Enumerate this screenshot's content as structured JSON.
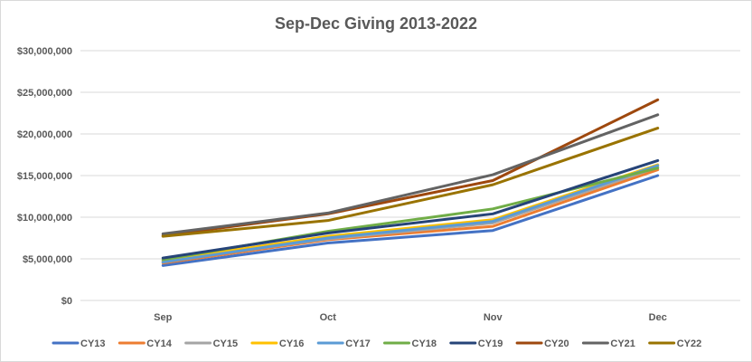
{
  "chart_data": {
    "type": "line",
    "title": "Sep-Dec Giving 2013-2022",
    "xlabel": "",
    "ylabel": "",
    "categories": [
      "Sep",
      "Oct",
      "Nov",
      "Dec"
    ],
    "ylim": [
      0,
      30000000
    ],
    "yticks": [
      0,
      5000000,
      10000000,
      15000000,
      20000000,
      25000000,
      30000000
    ],
    "ytick_labels": [
      "$0",
      "$5,000,000",
      "$10,000,000",
      "$15,000,000",
      "$20,000,000",
      "$25,000,000",
      "$30,000,000"
    ],
    "grid": true,
    "legend_position": "bottom",
    "series": [
      {
        "name": "CY13",
        "color": "#4472C4",
        "values": [
          4200000,
          6900000,
          8400000,
          15000000
        ]
      },
      {
        "name": "CY14",
        "color": "#ED7D31",
        "values": [
          4500000,
          7300000,
          8900000,
          15700000
        ]
      },
      {
        "name": "CY15",
        "color": "#A5A5A5",
        "values": [
          4700000,
          7400000,
          9300000,
          16000000
        ]
      },
      {
        "name": "CY16",
        "color": "#FFC000",
        "values": [
          4800000,
          7700000,
          9700000,
          16300000
        ]
      },
      {
        "name": "CY17",
        "color": "#5B9BD5",
        "values": [
          4600000,
          7500000,
          9500000,
          16200000
        ]
      },
      {
        "name": "CY18",
        "color": "#70AD47",
        "values": [
          4900000,
          8300000,
          11000000,
          15900000
        ]
      },
      {
        "name": "CY19",
        "color": "#264478",
        "values": [
          5100000,
          8100000,
          10400000,
          16800000
        ]
      },
      {
        "name": "CY20",
        "color": "#9E480E",
        "values": [
          7800000,
          10400000,
          14400000,
          24100000
        ]
      },
      {
        "name": "CY21",
        "color": "#636363",
        "values": [
          8000000,
          10500000,
          15100000,
          22300000
        ]
      },
      {
        "name": "CY22",
        "color": "#997300",
        "values": [
          7700000,
          9600000,
          13900000,
          20700000
        ]
      }
    ]
  }
}
